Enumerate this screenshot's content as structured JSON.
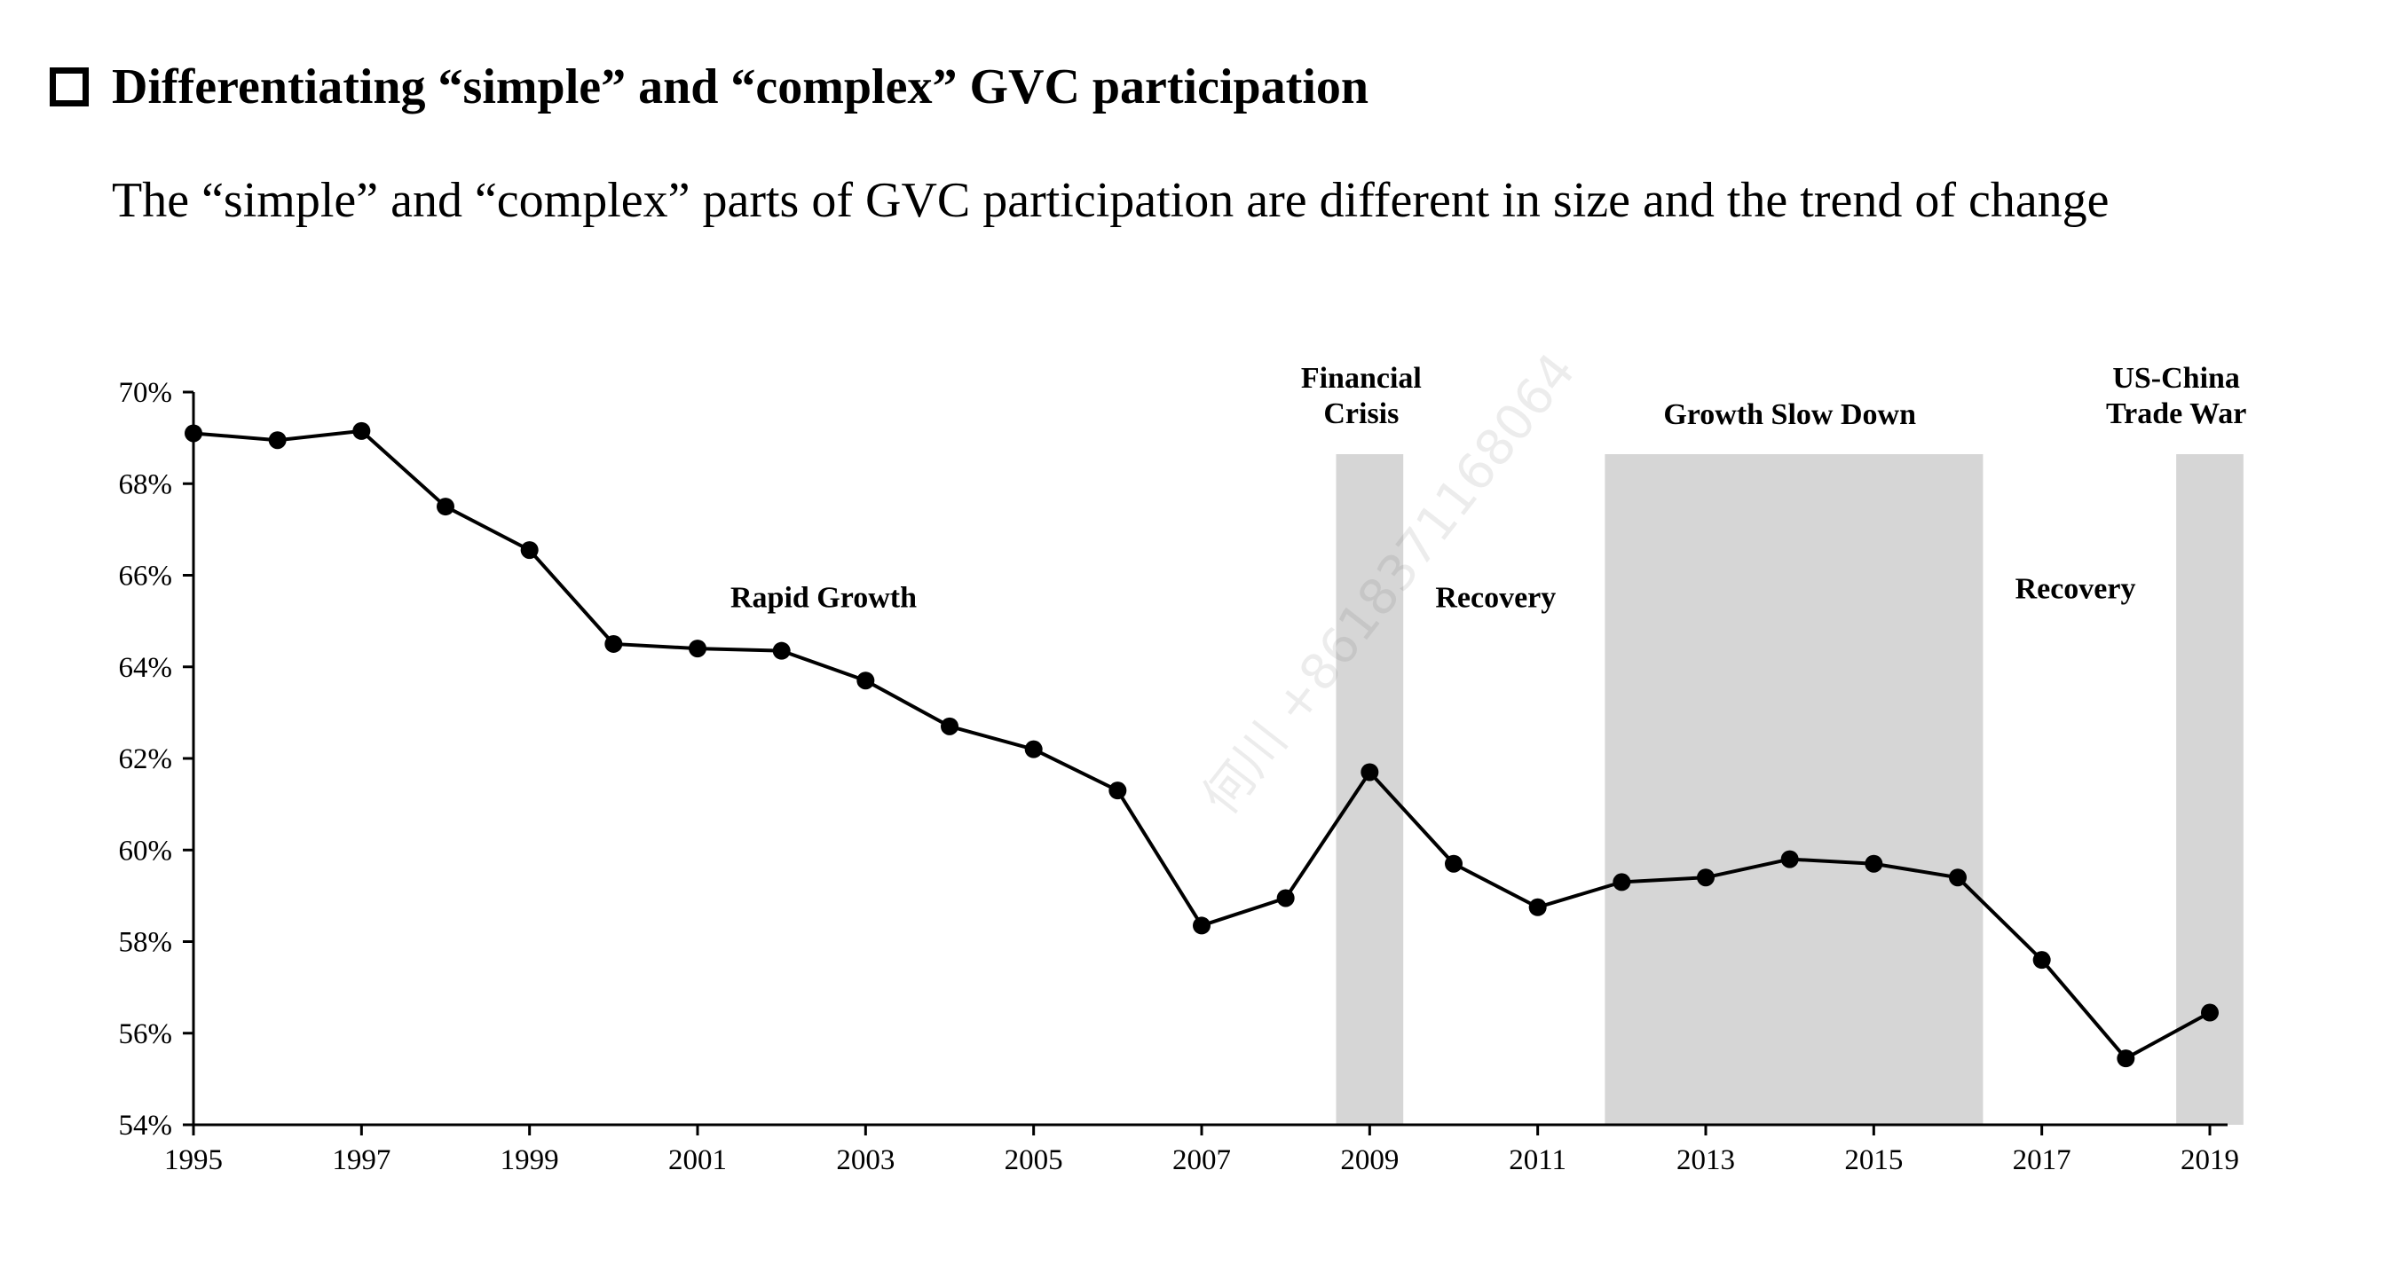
{
  "page": {
    "heading": "Differentiating “simple” and “complex” GVC participation",
    "subtitle": "The “simple” and “complex” parts of GVC participation are different in size and the trend of change",
    "watermark": "何川 +8618371168064"
  },
  "colors": {
    "line": "#000000",
    "marker": "#000000",
    "shading": "#d6d6d6",
    "axis": "#000000"
  },
  "chart_data": {
    "type": "line",
    "title": "",
    "xlabel": "",
    "ylabel": "",
    "x": [
      1995,
      1996,
      1997,
      1998,
      1999,
      2000,
      2001,
      2002,
      2003,
      2004,
      2005,
      2006,
      2007,
      2008,
      2009,
      2010,
      2011,
      2012,
      2013,
      2014,
      2015,
      2016,
      2017,
      2018,
      2019
    ],
    "series": [
      {
        "values": [
          69.1,
          68.95,
          69.15,
          67.5,
          66.55,
          64.5,
          64.4,
          64.35,
          63.7,
          62.7,
          62.2,
          61.3,
          58.35,
          58.95,
          61.7,
          59.7,
          58.75,
          59.3,
          59.4,
          59.8,
          59.7,
          59.4,
          57.6,
          55.45,
          56.45
        ]
      }
    ],
    "xlim": [
      1995,
      2019
    ],
    "ylim": [
      54,
      70
    ],
    "x_ticks": [
      "1995",
      "1997",
      "1999",
      "2001",
      "2003",
      "2005",
      "2007",
      "2009",
      "2011",
      "2013",
      "2015",
      "2017",
      "2019"
    ],
    "x_tick_values": [
      1995,
      1997,
      1999,
      2001,
      2003,
      2005,
      2007,
      2009,
      2011,
      2013,
      2015,
      2017,
      2019
    ],
    "y_ticks": [
      "54%",
      "56%",
      "58%",
      "60%",
      "62%",
      "64%",
      "66%",
      "68%",
      "70%"
    ],
    "y_tick_values": [
      54,
      56,
      58,
      60,
      62,
      64,
      66,
      68,
      70
    ],
    "grid": false,
    "shaded_periods": [
      {
        "name": "financial-crisis",
        "start": 2008.6,
        "end": 2009.4
      },
      {
        "name": "growth-slow-down",
        "start": 2011.8,
        "end": 2016.3
      },
      {
        "name": "trade-war",
        "start": 2018.6,
        "end": 2019.4
      }
    ],
    "period_labels": [
      {
        "name": "rapid-growth",
        "lines": [
          "Rapid  Growth"
        ],
        "x": 2002.5,
        "y": 65.3
      },
      {
        "name": "financial-crisis",
        "lines": [
          "Financial",
          "Crisis"
        ],
        "x": 2008.9,
        "y": 70.1
      },
      {
        "name": "recovery-1",
        "lines": [
          "Recovery"
        ],
        "x": 2010.5,
        "y": 65.3
      },
      {
        "name": "growth-slow-down",
        "lines": [
          "Growth Slow Down"
        ],
        "x": 2014.0,
        "y": 69.3
      },
      {
        "name": "recovery-2",
        "lines": [
          "Recovery"
        ],
        "x": 2017.4,
        "y": 65.5
      },
      {
        "name": "us-china-trade-war",
        "lines": [
          "US-China",
          "Trade War"
        ],
        "x": 2018.6,
        "y": 70.1
      }
    ]
  }
}
